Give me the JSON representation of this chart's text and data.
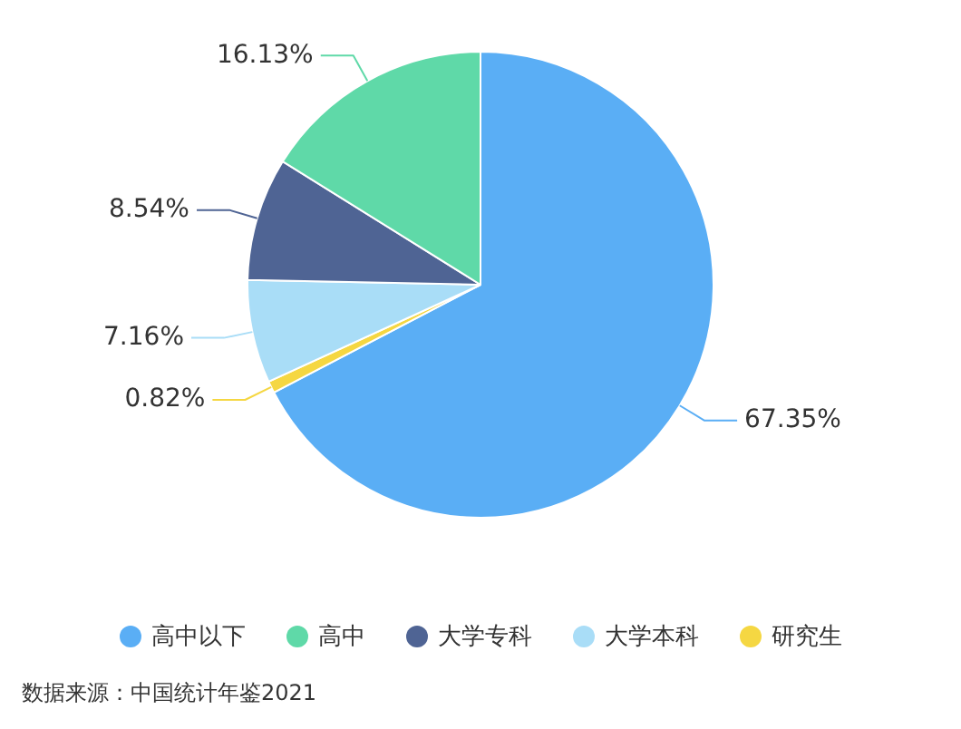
{
  "chart_data": {
    "type": "pie",
    "categories": [
      "高中以下",
      "高中",
      "大学专科",
      "大学本科",
      "研究生"
    ],
    "values": [
      67.35,
      16.13,
      8.54,
      7.16,
      0.82
    ],
    "colors": [
      "#5aaef5",
      "#5fd9a8",
      "#4f6494",
      "#a9ddf7",
      "#f5d742"
    ],
    "value_labels": [
      "67.35%",
      "16.13%",
      "8.54%",
      "7.16%",
      "0.82%"
    ],
    "legend": "bottom",
    "annotations": [
      "数据来源：中国统计年鉴2021"
    ]
  }
}
